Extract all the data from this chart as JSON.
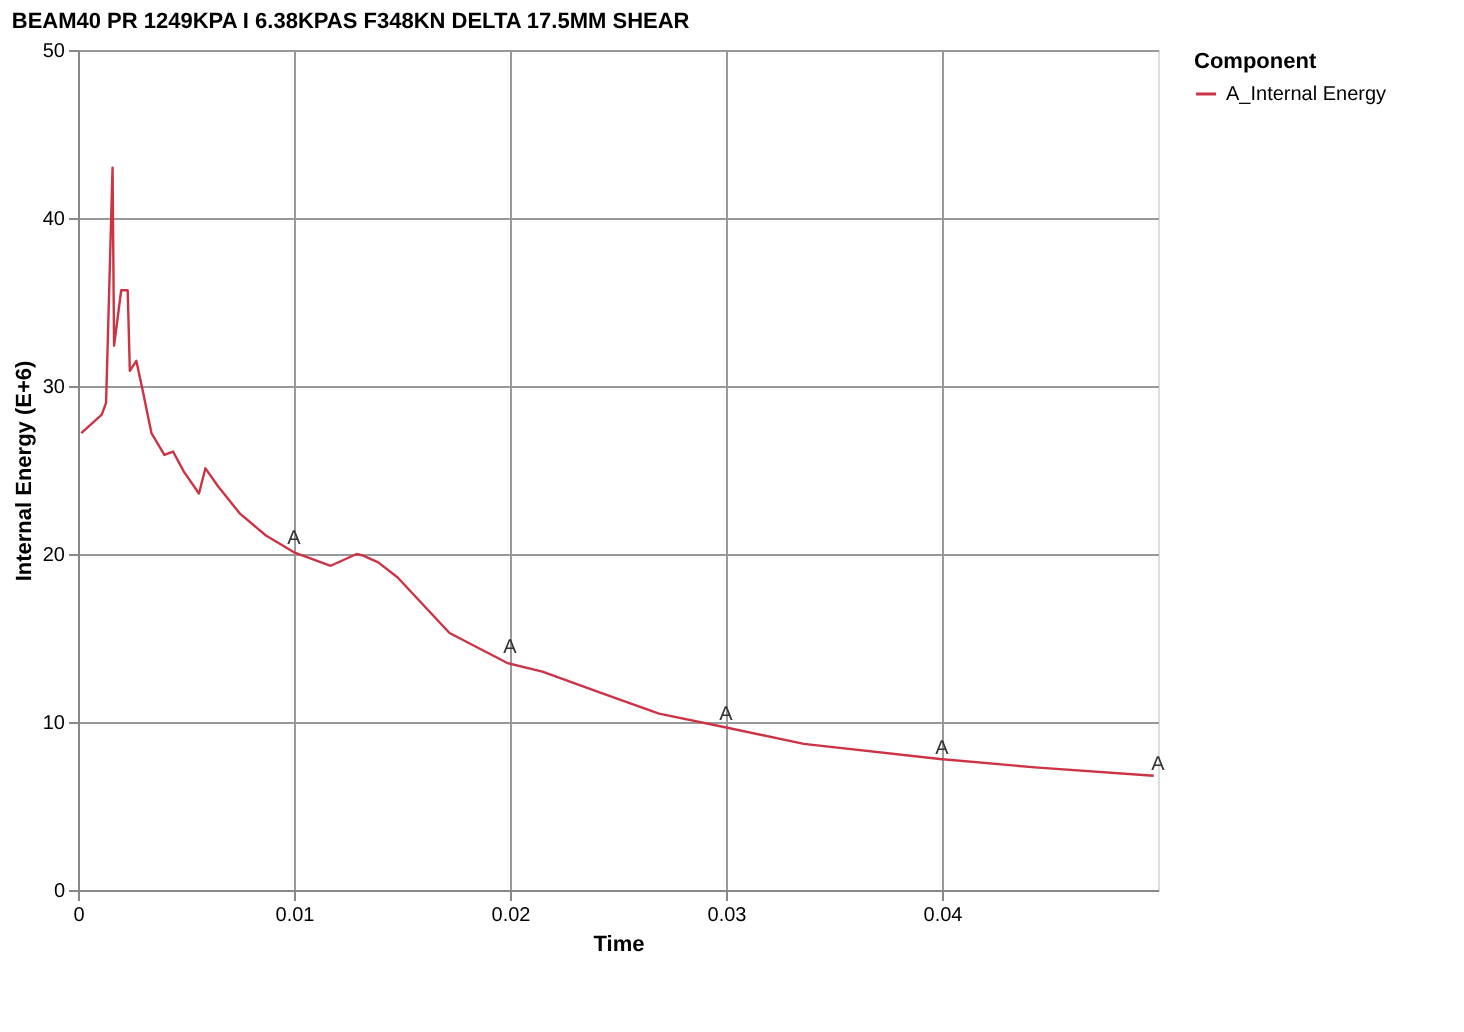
{
  "chart_data": {
    "type": "line",
    "title": "BEAM40 PR 1249KPA I 6.38KPAS F348KN DELTA 17.5MM SHEAR",
    "xlabel": "Time",
    "ylabel": "Internal Energy (E+6)",
    "legend_title": "Component",
    "legend": "top right",
    "grid": true,
    "marker": "none",
    "line_style": "solid",
    "xlim": [
      0,
      0.05
    ],
    "xticks": [
      0,
      0.01,
      0.02,
      0.03,
      0.04
    ],
    "ylim": [
      0,
      50
    ],
    "yticks": [
      0,
      10,
      20,
      30,
      40,
      50
    ],
    "series": [
      {
        "name": "A_Internal Energy",
        "color": "#cc3344",
        "x": [
          0.00015,
          0.0011,
          0.0013,
          0.0016,
          0.00167,
          0.002,
          0.0023,
          0.0024,
          0.0027,
          0.003,
          0.0034,
          0.004,
          0.0044,
          0.0049,
          0.0056,
          0.0059,
          0.0065,
          0.0075,
          0.0087,
          0.01,
          0.0117,
          0.0129,
          0.0132,
          0.0139,
          0.0148,
          0.0172,
          0.0199,
          0.0215,
          0.0245,
          0.0269,
          0.0299,
          0.0336,
          0.0399,
          0.0443,
          0.0498
        ],
        "values": [
          27.2,
          28.3,
          29.0,
          43.0,
          32.4,
          35.7,
          35.7,
          30.9,
          31.5,
          29.7,
          27.2,
          25.9,
          26.1,
          24.9,
          23.6,
          25.1,
          24.0,
          22.4,
          21.1,
          20.1,
          19.3,
          20.0,
          19.9,
          19.5,
          18.6,
          15.3,
          13.5,
          13.0,
          11.6,
          10.5,
          9.7,
          8.7,
          7.8,
          7.3,
          6.8
        ]
      }
    ],
    "annotations": [
      {
        "text": "A",
        "x": 0.01,
        "y": 20.5
      },
      {
        "text": "A",
        "x": 0.02,
        "y": 14
      },
      {
        "text": "A",
        "x": 0.03,
        "y": 10
      },
      {
        "text": "A",
        "x": 0.04,
        "y": 8
      },
      {
        "text": "A",
        "x": 0.05,
        "y": 7
      }
    ]
  }
}
